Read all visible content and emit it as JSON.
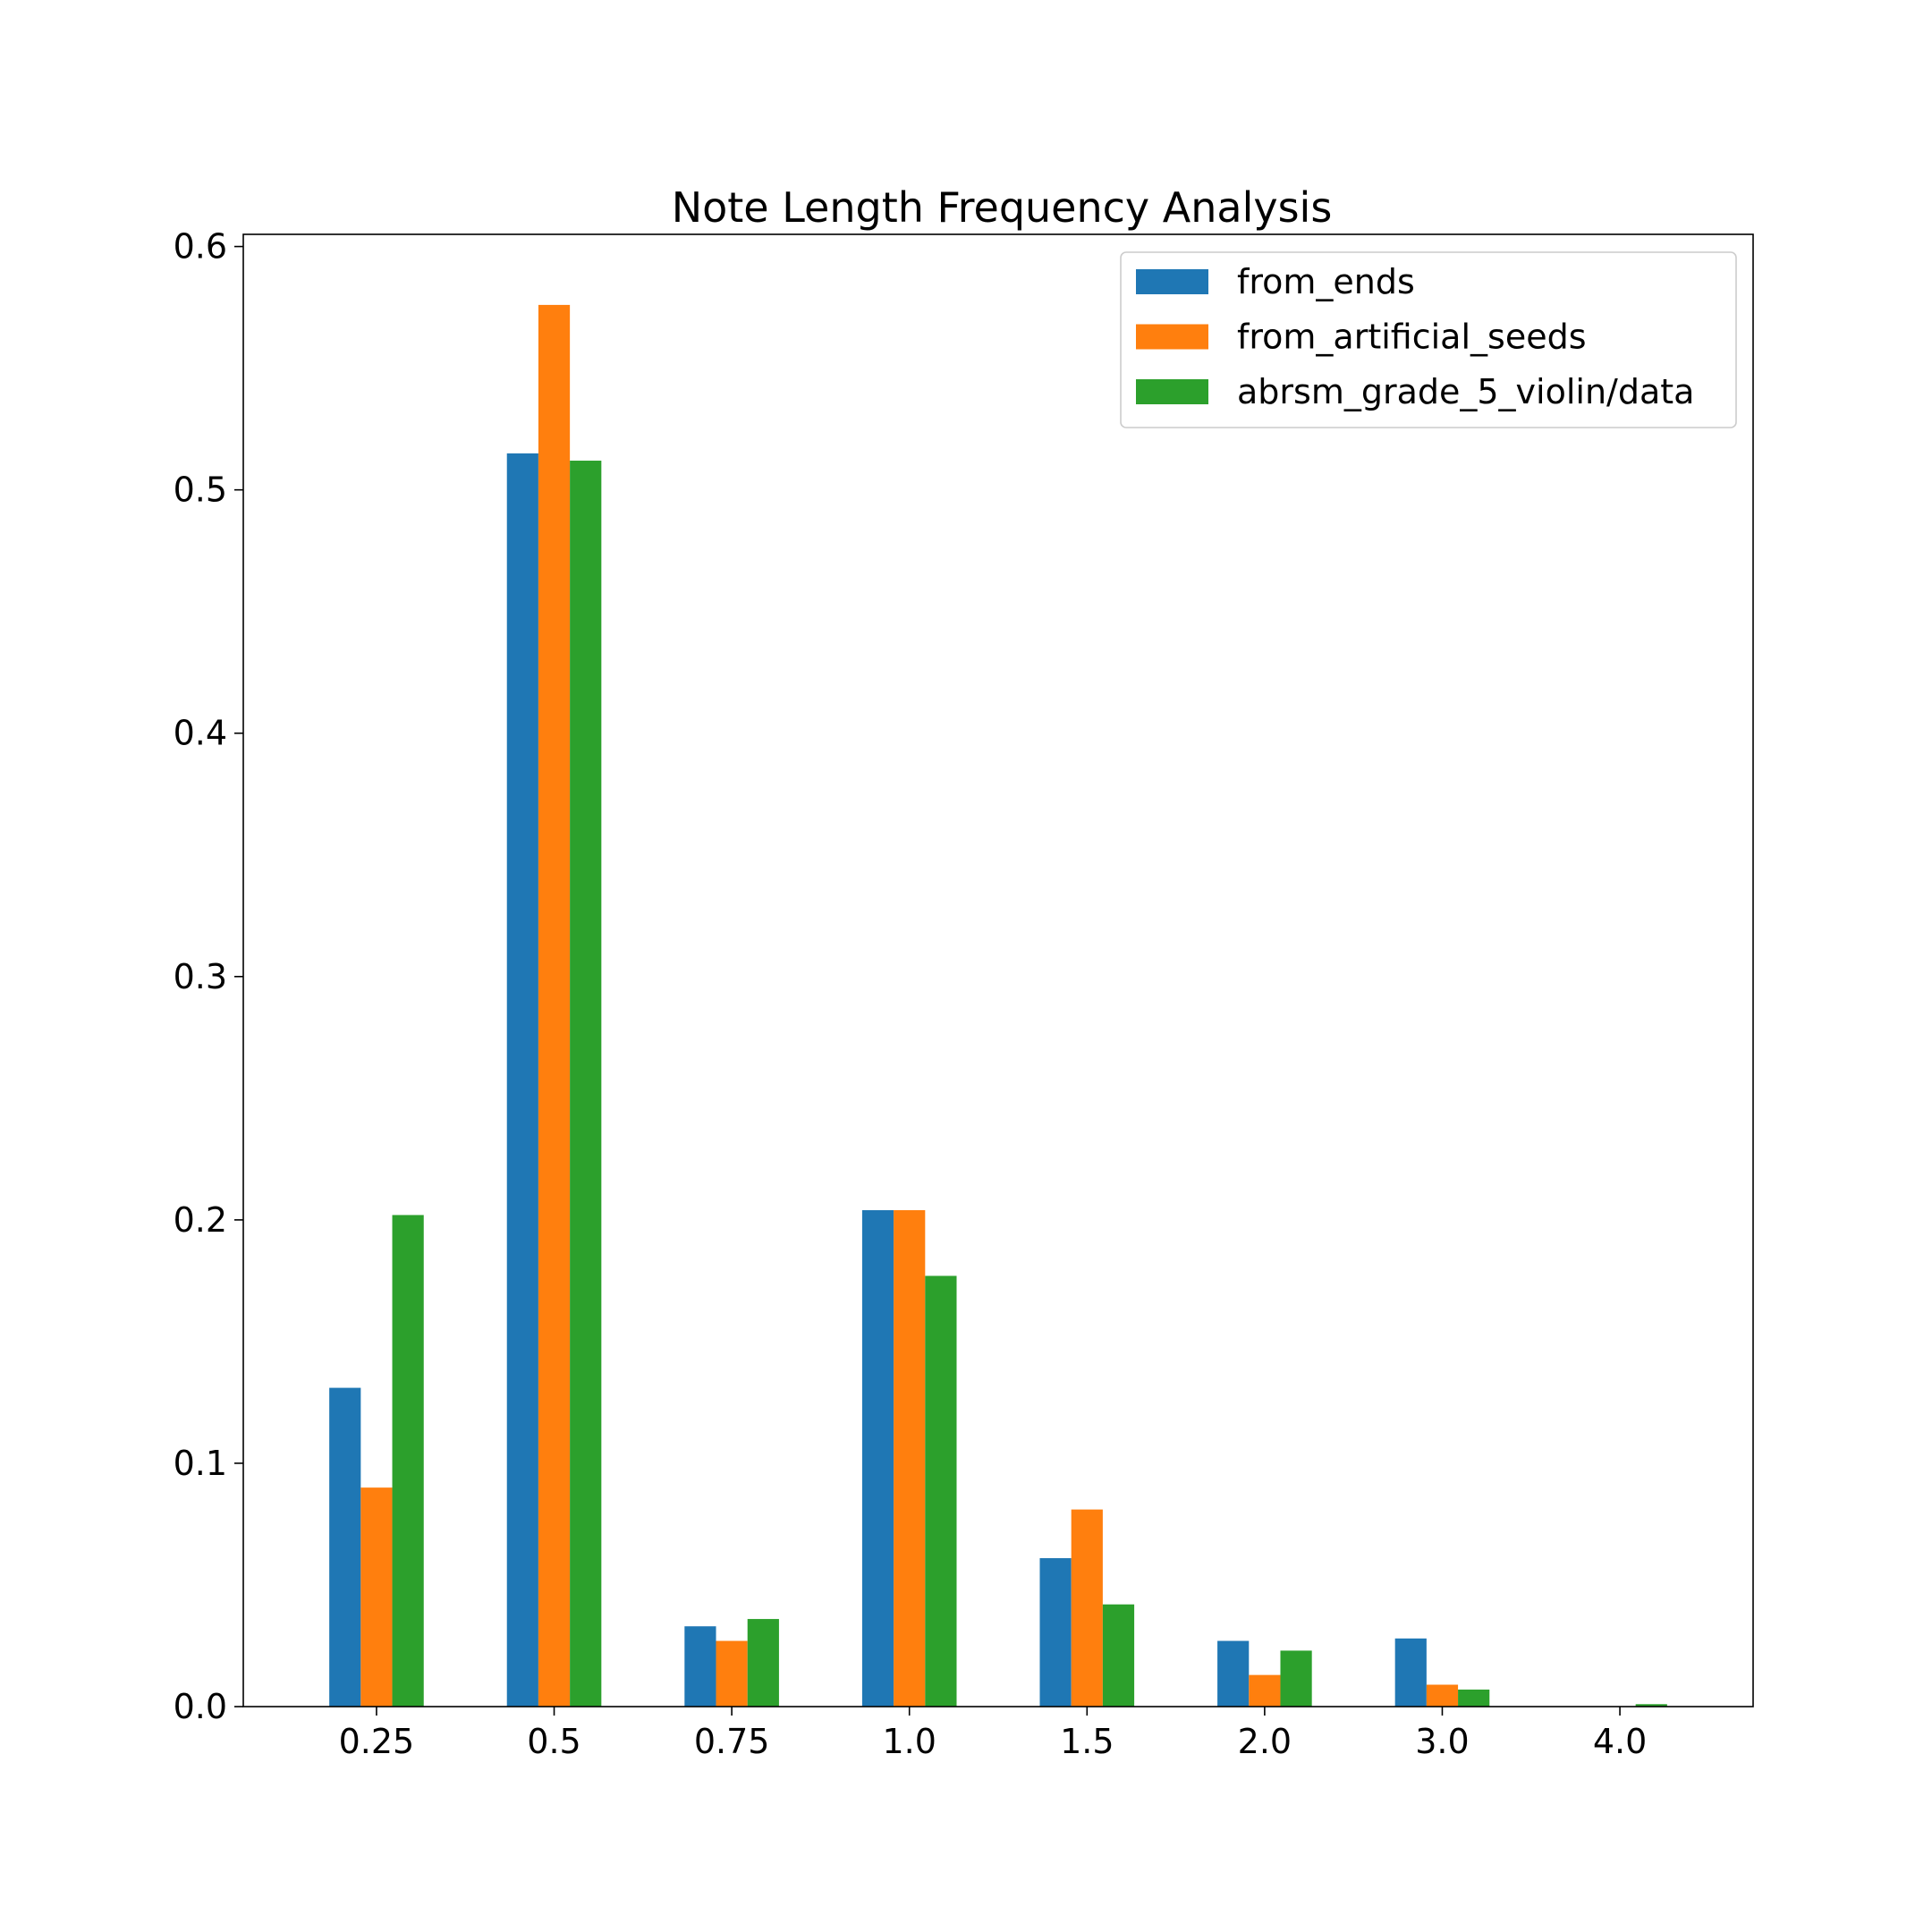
{
  "chart_data": {
    "type": "bar",
    "title": "Note Length Frequency Analysis",
    "xlabel": "",
    "ylabel": "",
    "categories": [
      "0.25",
      "0.5",
      "0.75",
      "1.0",
      "1.5",
      "2.0",
      "3.0",
      "4.0"
    ],
    "series": [
      {
        "name": "from_ends",
        "color": "#1f77b4",
        "values": [
          0.131,
          0.515,
          0.033,
          0.204,
          0.061,
          0.027,
          0.028,
          0.0
        ]
      },
      {
        "name": "from_artificial_seeds",
        "color": "#ff7f0e",
        "values": [
          0.09,
          0.576,
          0.027,
          0.204,
          0.081,
          0.013,
          0.009,
          0.0
        ]
      },
      {
        "name": "abrsm_grade_5_violin/data",
        "color": "#2ca02c",
        "values": [
          0.202,
          0.512,
          0.036,
          0.177,
          0.042,
          0.023,
          0.007,
          0.001
        ]
      }
    ],
    "ylim": [
      0,
      0.605
    ],
    "yticks": [
      "0.0",
      "0.1",
      "0.2",
      "0.3",
      "0.4",
      "0.5",
      "0.6"
    ],
    "ytick_values": [
      0,
      0.1,
      0.2,
      0.3,
      0.4,
      0.5,
      0.6
    ],
    "grid": false,
    "legend_position": "top-right"
  }
}
